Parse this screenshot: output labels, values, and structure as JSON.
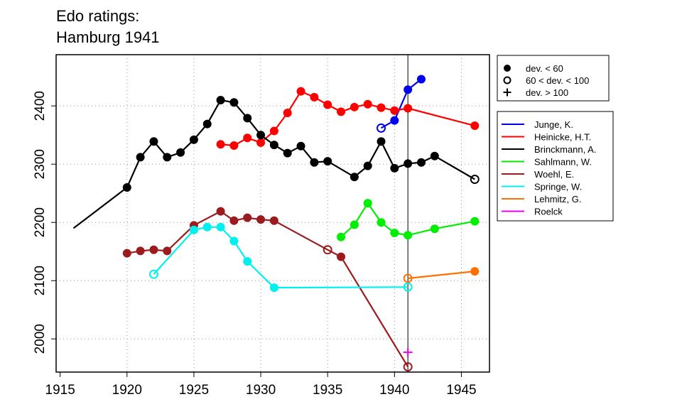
{
  "chart_data": {
    "type": "line",
    "title": [
      "Edo ratings:",
      "Hamburg 1941"
    ],
    "xlabel": "",
    "ylabel": "",
    "xlim": [
      1914.7,
      1947.1
    ],
    "ylim": [
      1943,
      2488
    ],
    "x_ticks": [
      1915,
      1920,
      1925,
      1930,
      1935,
      1940,
      1945
    ],
    "y_ticks": [
      2000,
      2100,
      2200,
      2300,
      2400
    ],
    "grid": "dotted",
    "reference_line_x": 1941,
    "dev_legend": {
      "placement": "top-right",
      "items": [
        {
          "symbol": "filled-circle",
          "label": "dev. < 60"
        },
        {
          "symbol": "open-circle",
          "label": "60 < dev. < 100"
        },
        {
          "symbol": "plus",
          "label": "dev. > 100"
        }
      ]
    },
    "series": [
      {
        "name": "Junge, K.",
        "color": "#0000ee",
        "points": [
          [
            1939,
            2362,
            "open"
          ],
          [
            1940,
            2375,
            "filled"
          ],
          [
            1941,
            2428,
            "filled"
          ],
          [
            1942,
            2446,
            "filled"
          ]
        ]
      },
      {
        "name": "Heinicke, H.T.",
        "color": "#ff0000",
        "points": [
          [
            1927,
            2334,
            "filled"
          ],
          [
            1928,
            2332,
            "filled"
          ],
          [
            1929,
            2345,
            "filled"
          ],
          [
            1930,
            2337,
            "filled"
          ],
          [
            1931,
            2357,
            "filled"
          ],
          [
            1932,
            2388,
            "filled"
          ],
          [
            1933,
            2425,
            "filled"
          ],
          [
            1934,
            2415,
            "filled"
          ],
          [
            1935,
            2402,
            "filled"
          ],
          [
            1936,
            2390,
            "filled"
          ],
          [
            1937,
            2398,
            "filled"
          ],
          [
            1938,
            2403,
            "filled"
          ],
          [
            1939,
            2397,
            "filled"
          ],
          [
            1940,
            2392,
            "filled"
          ],
          [
            1941,
            2396,
            "filled"
          ],
          [
            1946,
            2366,
            "filled"
          ]
        ]
      },
      {
        "name": "Brinckmann, A.",
        "color": "#000000",
        "points": [
          [
            1916,
            2190,
            "none"
          ],
          [
            1920,
            2260,
            "filled"
          ],
          [
            1921,
            2312,
            "filled"
          ],
          [
            1922,
            2339,
            "filled"
          ],
          [
            1923,
            2312,
            "filled"
          ],
          [
            1924,
            2320,
            "filled"
          ],
          [
            1925,
            2342,
            "filled"
          ],
          [
            1926,
            2369,
            "filled"
          ],
          [
            1927,
            2410,
            "filled"
          ],
          [
            1928,
            2406,
            "filled"
          ],
          [
            1929,
            2379,
            "filled"
          ],
          [
            1930,
            2350,
            "filled"
          ],
          [
            1931,
            2333,
            "filled"
          ],
          [
            1932,
            2319,
            "filled"
          ],
          [
            1933,
            2331,
            "filled"
          ],
          [
            1934,
            2303,
            "filled"
          ],
          [
            1935,
            2305,
            "filled"
          ],
          [
            1937,
            2278,
            "filled"
          ],
          [
            1938,
            2297,
            "filled"
          ],
          [
            1939,
            2339,
            "filled"
          ],
          [
            1940,
            2293,
            "filled"
          ],
          [
            1941,
            2301,
            "filled"
          ],
          [
            1942,
            2303,
            "filled"
          ],
          [
            1943,
            2314,
            "filled"
          ],
          [
            1946,
            2274,
            "open"
          ]
        ]
      },
      {
        "name": "Sahlmann, W.",
        "color": "#00ee00",
        "points": [
          [
            1936,
            2175,
            "filled"
          ],
          [
            1937,
            2196,
            "filled"
          ],
          [
            1938,
            2233,
            "filled"
          ],
          [
            1939,
            2200,
            "filled"
          ],
          [
            1940,
            2182,
            "filled"
          ],
          [
            1941,
            2178,
            "filled"
          ],
          [
            1943,
            2189,
            "filled"
          ],
          [
            1946,
            2202,
            "filled"
          ]
        ]
      },
      {
        "name": "Woehl, E.",
        "color": "#9b1b1e",
        "points": [
          [
            1920,
            2147,
            "filled"
          ],
          [
            1921,
            2151,
            "filled"
          ],
          [
            1922,
            2153,
            "filled"
          ],
          [
            1923,
            2151,
            "filled"
          ],
          [
            1925,
            2195,
            "filled"
          ],
          [
            1927,
            2219,
            "filled"
          ],
          [
            1928,
            2203,
            "filled"
          ],
          [
            1929,
            2208,
            "filled"
          ],
          [
            1930,
            2205,
            "filled"
          ],
          [
            1931,
            2203,
            "filled"
          ],
          [
            1935,
            2153,
            "open"
          ],
          [
            1936,
            2141,
            "filled"
          ],
          [
            1941,
            1952,
            "open"
          ]
        ]
      },
      {
        "name": "Springe, W.",
        "color": "#00f0f0",
        "points": [
          [
            1922,
            2111,
            "open"
          ],
          [
            1925,
            2187,
            "filled"
          ],
          [
            1926,
            2192,
            "filled"
          ],
          [
            1927,
            2192,
            "filled"
          ],
          [
            1928,
            2168,
            "filled"
          ],
          [
            1929,
            2133,
            "filled"
          ],
          [
            1931,
            2088,
            "filled"
          ],
          [
            1941,
            2089,
            "open"
          ]
        ]
      },
      {
        "name": "Lehmitz, G.",
        "color": "#ff7000",
        "points": [
          [
            1941,
            2104,
            "open"
          ],
          [
            1946,
            2116,
            "filled"
          ]
        ]
      },
      {
        "name": "Roelck",
        "color": "#ee00ee",
        "points": [
          [
            1941,
            1977,
            "plus"
          ]
        ]
      }
    ]
  }
}
